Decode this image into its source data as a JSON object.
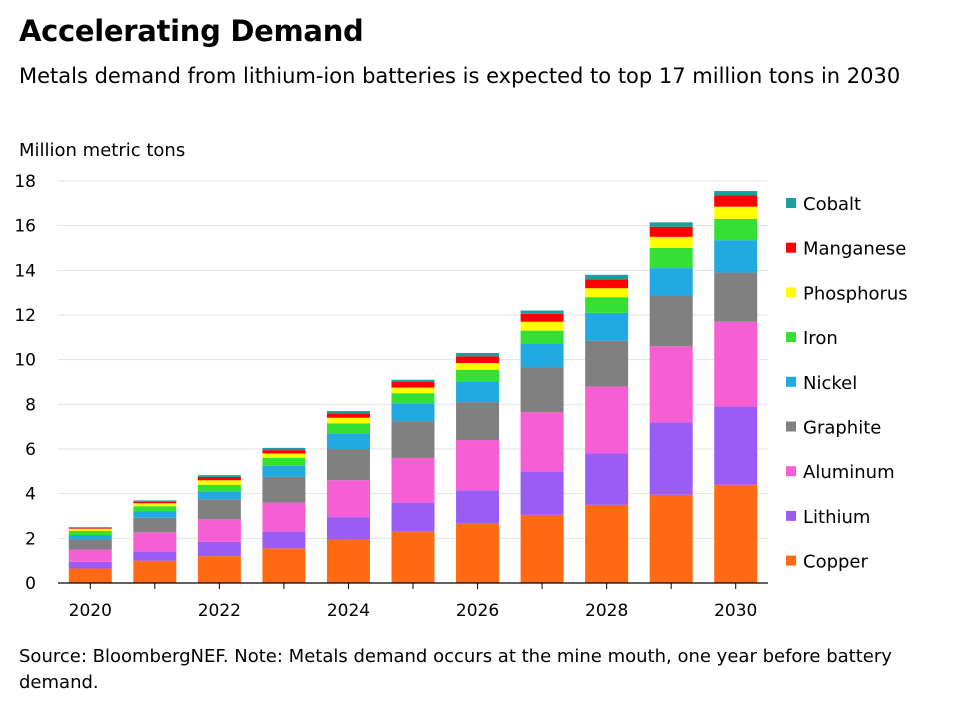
{
  "header": {
    "title": "Accelerating Demand",
    "subtitle": "Metals demand from lithium-ion batteries is expected to top 17 million tons in 2030"
  },
  "footer": {
    "source": "Source: BloombergNEF. Note: Metals demand occurs at the mine mouth, one year before battery demand."
  },
  "chart_data": {
    "type": "bar",
    "stacked": true,
    "ylabel": "Million metric tons",
    "ylim": [
      0,
      18
    ],
    "yticks": [
      0,
      2,
      4,
      6,
      8,
      10,
      12,
      14,
      16,
      18
    ],
    "grid": true,
    "legend_position": "right",
    "categories": [
      "2020",
      "2021",
      "2022",
      "2023",
      "2024",
      "2025",
      "2026",
      "2027",
      "2028",
      "2029",
      "2030"
    ],
    "xtick_labels": [
      "2020",
      "",
      "2022",
      "",
      "2024",
      "",
      "2026",
      "",
      "2028",
      "",
      "2030"
    ],
    "series": [
      {
        "name": "Copper",
        "color": "#ff6a13",
        "values": [
          0.65,
          1.0,
          1.2,
          1.55,
          1.95,
          2.3,
          2.65,
          3.05,
          3.5,
          3.95,
          4.4
        ]
      },
      {
        "name": "Lithium",
        "color": "#9b5cf6",
        "values": [
          0.3,
          0.42,
          0.65,
          0.75,
          1.0,
          1.3,
          1.5,
          1.95,
          2.3,
          3.25,
          3.5
        ]
      },
      {
        "name": "Aluminum",
        "color": "#f65ed3",
        "values": [
          0.55,
          0.85,
          1.0,
          1.3,
          1.65,
          2.0,
          2.25,
          2.65,
          3.0,
          3.4,
          3.8
        ]
      },
      {
        "name": "Graphite",
        "color": "#808080",
        "values": [
          0.45,
          0.65,
          0.9,
          1.15,
          1.4,
          1.65,
          1.7,
          2.0,
          2.05,
          2.25,
          2.2
        ]
      },
      {
        "name": "Nickel",
        "color": "#21a9e1",
        "values": [
          0.2,
          0.3,
          0.35,
          0.5,
          0.7,
          0.8,
          0.9,
          1.05,
          1.25,
          1.25,
          1.45
        ]
      },
      {
        "name": "Iron",
        "color": "#33e033",
        "values": [
          0.18,
          0.22,
          0.3,
          0.35,
          0.45,
          0.45,
          0.55,
          0.6,
          0.7,
          0.9,
          0.95
        ]
      },
      {
        "name": "Phosphorus",
        "color": "#ffff00",
        "values": [
          0.1,
          0.13,
          0.2,
          0.2,
          0.25,
          0.25,
          0.3,
          0.4,
          0.4,
          0.5,
          0.55
        ]
      },
      {
        "name": "Manganese",
        "color": "#ff0000",
        "values": [
          0.03,
          0.06,
          0.15,
          0.15,
          0.2,
          0.25,
          0.3,
          0.35,
          0.4,
          0.45,
          0.5
        ]
      },
      {
        "name": "Cobalt",
        "color": "#1a9e9e",
        "values": [
          0.04,
          0.07,
          0.08,
          0.1,
          0.1,
          0.1,
          0.15,
          0.15,
          0.2,
          0.2,
          0.2
        ]
      }
    ]
  }
}
